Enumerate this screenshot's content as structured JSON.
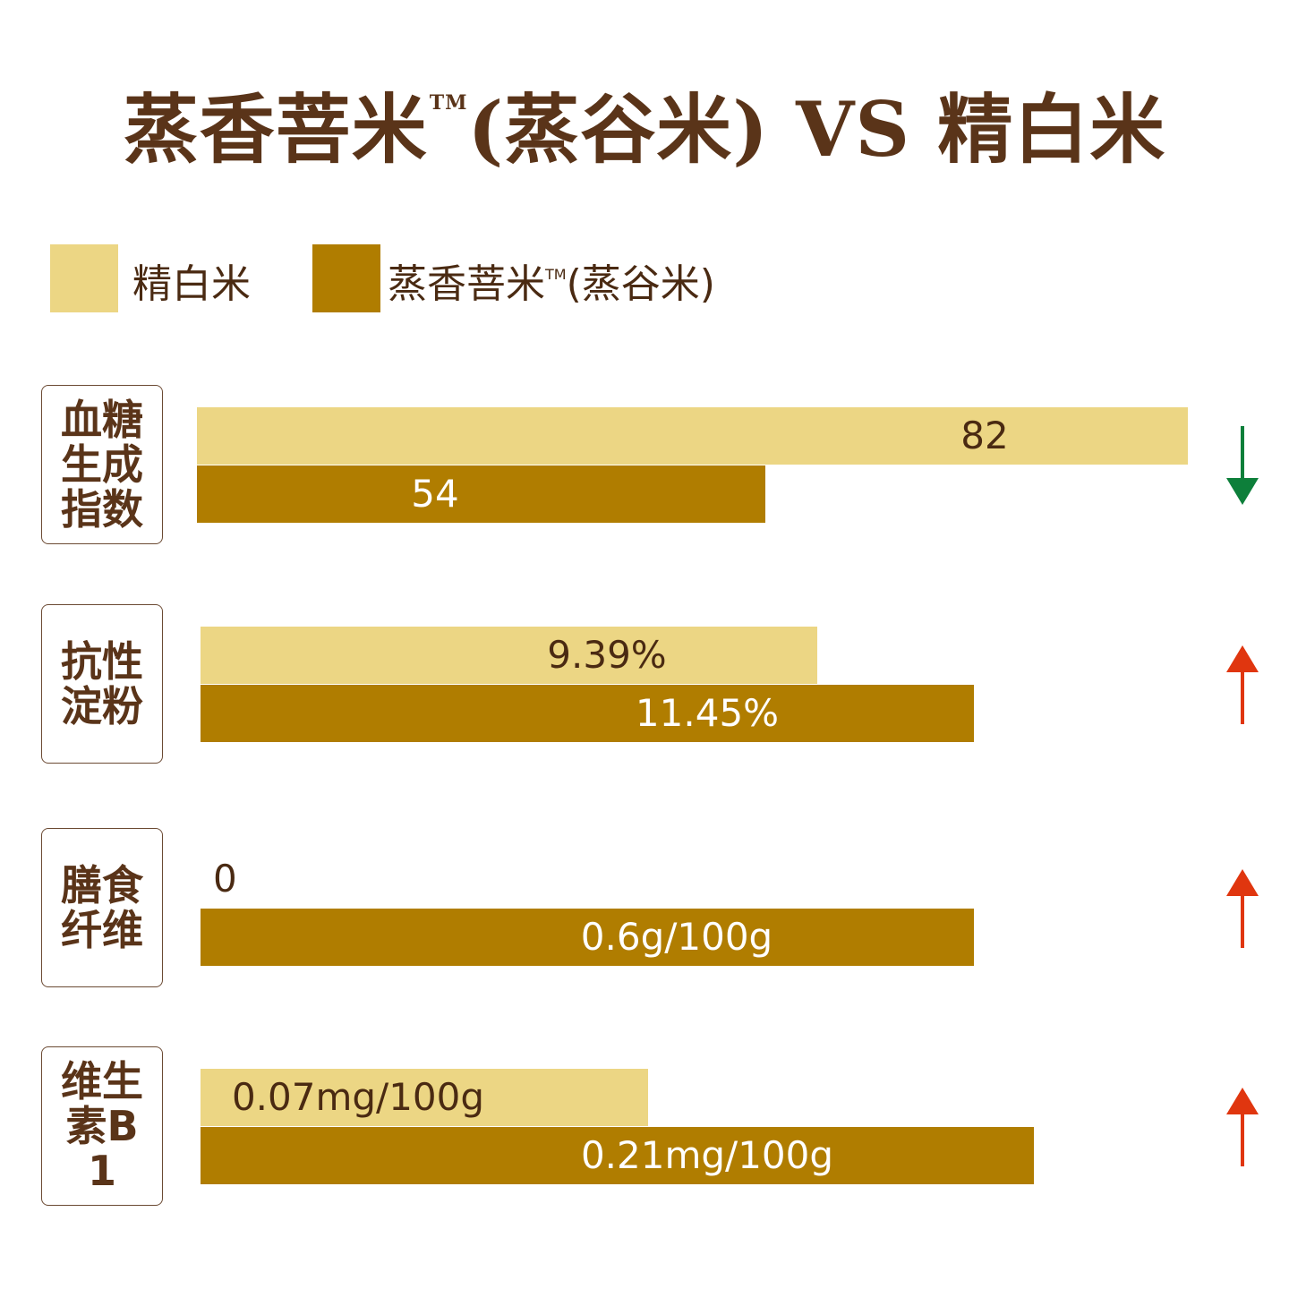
{
  "title": {
    "main": "蒸香菩米",
    "tm": "TM",
    "rest": "(蒸谷米) VS 精白米"
  },
  "legend": [
    {
      "label": "精白米",
      "tm": "",
      "label_rest": "",
      "color": "#ecd684"
    },
    {
      "label": "蒸香菩米",
      "tm": "TM",
      "label_rest": "(蒸谷米)",
      "color": "#b07d00"
    }
  ],
  "colors": {
    "white_rice": "#ecd684",
    "steamed_rice": "#b07d00",
    "text_dark": "#5a3419",
    "down_arrow": "#0d7f3a",
    "up_arrow": "#e0360f"
  },
  "chart_data": {
    "type": "bar",
    "orientation": "horizontal",
    "categories": [
      "血糖生成指数",
      "抗性淀粉",
      "膳食纤维",
      "维生素B1"
    ],
    "series": [
      {
        "name": "精白米",
        "values": [
          82,
          9.39,
          0,
          0.07
        ],
        "labels": [
          "82",
          "9.39%",
          "0",
          "0.07mg/100g"
        ]
      },
      {
        "name": "蒸香菩米™(蒸谷米)",
        "values": [
          54,
          11.45,
          0.6,
          0.21
        ],
        "labels": [
          "54",
          "11.45%",
          "0.6g/100g",
          "0.21mg/100g"
        ]
      }
    ],
    "bar_fraction": {
      "精白米": [
        0.82,
        0.51,
        0,
        0.37
      ],
      "蒸香菩米™(蒸谷米)": [
        0.47,
        0.64,
        0.64,
        0.69
      ]
    },
    "trend": [
      "down",
      "up",
      "up",
      "up"
    ]
  }
}
